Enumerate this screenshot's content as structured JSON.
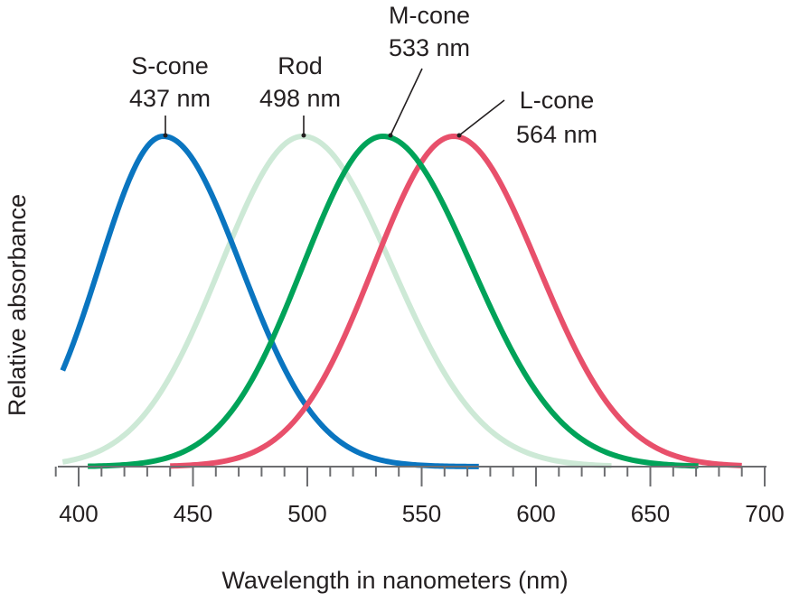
{
  "chart_data": {
    "type": "line",
    "title": "",
    "xlabel": "Wavelength in nanometers (nm)",
    "ylabel": "Relative absorbance",
    "xlim": [
      400,
      700
    ],
    "ylim": [
      0,
      1
    ],
    "x_ticks": [
      400,
      450,
      500,
      550,
      600,
      650,
      700
    ],
    "x_minor_step": 10,
    "grid": false,
    "legend": "none",
    "series": [
      {
        "name": "S-cone",
        "peak_text": "437 nm",
        "peak_nm": 437,
        "x_range": [
          393,
          575
        ],
        "sigma_left": 28,
        "sigma_right": 34,
        "color": "#0a75c0"
      },
      {
        "name": "Rod",
        "peak_text": "498 nm",
        "peak_nm": 498,
        "x_range": [
          393,
          633
        ],
        "sigma_left": 36,
        "sigma_right": 39,
        "color": "#cde9d6"
      },
      {
        "name": "M-cone",
        "peak_text": "533 nm",
        "peak_nm": 533,
        "x_range": [
          404,
          671
        ],
        "sigma_left": 35,
        "sigma_right": 39,
        "color": "#00a359"
      },
      {
        "name": "L-cone",
        "peak_text": "564 nm",
        "peak_nm": 564,
        "x_range": [
          440,
          690
        ],
        "sigma_left": 35,
        "sigma_right": 37,
        "color": "#e8506b"
      }
    ]
  }
}
